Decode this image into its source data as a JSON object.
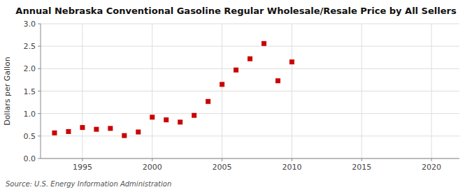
{
  "chart_data": {
    "type": "scatter",
    "title": "Annual Nebraska Conventional Gasoline Regular Wholesale/Resale Price by All Sellers",
    "ylabel": "Dollars per Gallon",
    "source": "Source: U.S. Energy Information Administration",
    "x": [
      1993,
      1994,
      1995,
      1996,
      1997,
      1998,
      1999,
      2000,
      2001,
      2002,
      2003,
      2004,
      2005,
      2006,
      2007,
      2008,
      2009,
      2010
    ],
    "values": [
      0.57,
      0.6,
      0.69,
      0.65,
      0.67,
      0.51,
      0.59,
      0.92,
      0.86,
      0.81,
      0.96,
      1.27,
      1.65,
      1.97,
      2.22,
      2.56,
      1.73,
      2.15
    ],
    "color": "#cc0000",
    "marker": "square",
    "xlim": [
      1992,
      2022
    ],
    "ylim": [
      0.0,
      3.0
    ],
    "xticks": [
      1995,
      2000,
      2005,
      2010,
      2015,
      2020
    ],
    "yticks": [
      {
        "value": 0.0,
        "label": "0.0"
      },
      0.5,
      {
        "value": 1.0,
        "label": "1.0"
      },
      1.5,
      {
        "value": 2.0,
        "label": "2.0"
      },
      2.5,
      {
        "value": 3.0,
        "label": "3.0"
      }
    ],
    "grid": true
  }
}
